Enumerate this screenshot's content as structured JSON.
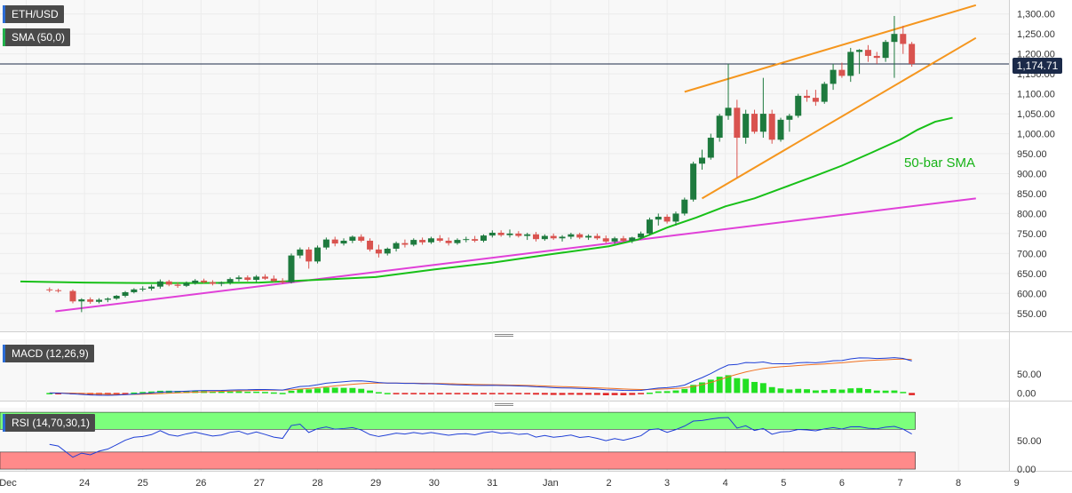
{
  "chart_data": {
    "type": "candlestick",
    "x_tick_labels": [
      "Dec",
      "24",
      "25",
      "26",
      "27",
      "28",
      "29",
      "30",
      "31",
      "Jan",
      "2",
      "3",
      "4",
      "5",
      "6",
      "7",
      "8",
      "9"
    ],
    "price_panel": {
      "symbol_label": "ETH/USD",
      "indicator_label": "SMA (50,0)",
      "y_tick_labels": [
        "1,300.00",
        "1,250.00",
        "1,200.00",
        "1,150.00",
        "1,100.00",
        "1,050.00",
        "1,000.00",
        "950.00",
        "900.00",
        "850.00",
        "800.00",
        "750.00",
        "700.00",
        "650.00",
        "600.00",
        "550.00"
      ],
      "ylim": [
        505,
        1335
      ],
      "last_price": 1174.71,
      "last_price_label": "1,174.71",
      "annotation": "50-bar SMA",
      "candles": [
        [
          23.4,
          610,
          615,
          603,
          608
        ],
        [
          23.55,
          608,
          612,
          602,
          606
        ],
        [
          23.8,
          606,
          610,
          575,
          580
        ],
        [
          23.95,
          580,
          588,
          553,
          585
        ],
        [
          24.1,
          585,
          590,
          574,
          579
        ],
        [
          24.25,
          579,
          588,
          575,
          584
        ],
        [
          24.4,
          584,
          590,
          578,
          587
        ],
        [
          24.55,
          587,
          596,
          584,
          594
        ],
        [
          24.7,
          594,
          606,
          590,
          603
        ],
        [
          24.85,
          603,
          613,
          600,
          610
        ],
        [
          25.0,
          610,
          618,
          605,
          612
        ],
        [
          25.15,
          612,
          622,
          607,
          617
        ],
        [
          25.3,
          617,
          635,
          612,
          630
        ],
        [
          25.45,
          630,
          634,
          618,
          622
        ],
        [
          25.6,
          622,
          628,
          614,
          619
        ],
        [
          25.75,
          619,
          630,
          616,
          626
        ],
        [
          25.9,
          626,
          636,
          622,
          632
        ],
        [
          26.05,
          632,
          637,
          625,
          628
        ],
        [
          26.2,
          628,
          633,
          620,
          624
        ],
        [
          26.35,
          624,
          630,
          618,
          627
        ],
        [
          26.5,
          627,
          640,
          622,
          636
        ],
        [
          26.65,
          636,
          645,
          630,
          640
        ],
        [
          26.8,
          640,
          645,
          630,
          634
        ],
        [
          26.95,
          634,
          646,
          628,
          642
        ],
        [
          27.1,
          642,
          648,
          634,
          637
        ],
        [
          27.25,
          637,
          645,
          628,
          631
        ],
        [
          27.4,
          631,
          638,
          624,
          628
        ],
        [
          27.55,
          628,
          700,
          625,
          695
        ],
        [
          27.7,
          695,
          715,
          688,
          710
        ],
        [
          27.85,
          710,
          716,
          662,
          680
        ],
        [
          28.0,
          680,
          720,
          675,
          715
        ],
        [
          28.15,
          715,
          740,
          710,
          735
        ],
        [
          28.3,
          735,
          742,
          718,
          725
        ],
        [
          28.45,
          725,
          738,
          720,
          732
        ],
        [
          28.6,
          732,
          745,
          726,
          742
        ],
        [
          28.75,
          742,
          748,
          728,
          732
        ],
        [
          28.9,
          732,
          738,
          705,
          710
        ],
        [
          29.05,
          710,
          722,
          690,
          700
        ],
        [
          29.2,
          700,
          715,
          695,
          712
        ],
        [
          29.35,
          712,
          730,
          705,
          726
        ],
        [
          29.5,
          726,
          735,
          715,
          722
        ],
        [
          29.65,
          722,
          738,
          718,
          734
        ],
        [
          29.8,
          734,
          740,
          722,
          728
        ],
        [
          29.95,
          728,
          742,
          724,
          738
        ],
        [
          30.1,
          738,
          746,
          728,
          732
        ],
        [
          30.25,
          732,
          740,
          720,
          726
        ],
        [
          30.4,
          726,
          738,
          722,
          734
        ],
        [
          30.55,
          734,
          742,
          728,
          736
        ],
        [
          30.7,
          736,
          744,
          728,
          732
        ],
        [
          30.85,
          732,
          748,
          728,
          745
        ],
        [
          31.0,
          745,
          758,
          740,
          752
        ],
        [
          31.15,
          752,
          758,
          742,
          746
        ],
        [
          31.3,
          746,
          760,
          740,
          750
        ],
        [
          31.45,
          750,
          756,
          740,
          744
        ],
        [
          31.6,
          744,
          752,
          734,
          748
        ],
        [
          31.75,
          748,
          754,
          730,
          736
        ],
        [
          31.9,
          736,
          748,
          732,
          744
        ],
        [
          32.05,
          744,
          750,
          734,
          738
        ],
        [
          32.2,
          738,
          746,
          730,
          742
        ],
        [
          32.35,
          742,
          752,
          736,
          748
        ],
        [
          32.5,
          748,
          752,
          736,
          740
        ],
        [
          32.65,
          740,
          748,
          734,
          744
        ],
        [
          32.8,
          744,
          750,
          734,
          738
        ],
        [
          32.95,
          738,
          745,
          726,
          730
        ],
        [
          33.1,
          730,
          742,
          724,
          738
        ],
        [
          33.25,
          738,
          744,
          728,
          732
        ],
        [
          33.4,
          732,
          742,
          726,
          740
        ],
        [
          33.55,
          740,
          755,
          735,
          750
        ],
        [
          33.7,
          750,
          790,
          745,
          785
        ],
        [
          33.85,
          785,
          800,
          770,
          792
        ],
        [
          34.0,
          792,
          798,
          775,
          780
        ],
        [
          34.15,
          780,
          805,
          770,
          800
        ],
        [
          34.3,
          800,
          840,
          795,
          835
        ],
        [
          34.45,
          835,
          930,
          830,
          925
        ],
        [
          34.6,
          925,
          960,
          910,
          940
        ],
        [
          34.75,
          940,
          1000,
          935,
          990
        ],
        [
          34.9,
          990,
          1050,
          980,
          1045
        ],
        [
          35.05,
          1045,
          1175,
          1035,
          1065
        ],
        [
          35.2,
          1065,
          1085,
          890,
          990
        ],
        [
          35.35,
          990,
          1060,
          975,
          1050
        ],
        [
          35.5,
          1050,
          1060,
          1000,
          1005
        ],
        [
          35.65,
          1005,
          1140,
          990,
          1050
        ],
        [
          35.8,
          1050,
          1060,
          975,
          985
        ],
        [
          35.95,
          985,
          1040,
          980,
          1035
        ],
        [
          36.1,
          1035,
          1050,
          1005,
          1045
        ],
        [
          36.25,
          1045,
          1100,
          1040,
          1095
        ],
        [
          36.4,
          1095,
          1110,
          1080,
          1090
        ],
        [
          36.55,
          1090,
          1110,
          1070,
          1080
        ],
        [
          36.7,
          1080,
          1130,
          1075,
          1125
        ],
        [
          36.85,
          1125,
          1175,
          1110,
          1160
        ],
        [
          37.0,
          1160,
          1178,
          1140,
          1145
        ],
        [
          37.15,
          1145,
          1215,
          1130,
          1205
        ],
        [
          37.3,
          1205,
          1212,
          1150,
          1210
        ],
        [
          37.45,
          1210,
          1222,
          1180,
          1195
        ],
        [
          37.6,
          1195,
          1205,
          1175,
          1190
        ],
        [
          37.75,
          1190,
          1235,
          1180,
          1230
        ],
        [
          37.9,
          1230,
          1295,
          1140,
          1250
        ],
        [
          38.05,
          1250,
          1270,
          1200,
          1225
        ],
        [
          38.2,
          1225,
          1230,
          1168,
          1175
        ]
      ],
      "sma50": [
        [
          22.9,
          630
        ],
        [
          24.0,
          627
        ],
        [
          25.0,
          626
        ],
        [
          26.0,
          626
        ],
        [
          27.0,
          627
        ],
        [
          28.0,
          634
        ],
        [
          29.0,
          641
        ],
        [
          30.0,
          660
        ],
        [
          31.0,
          677
        ],
        [
          32.0,
          698
        ],
        [
          33.0,
          718
        ],
        [
          33.5,
          735
        ],
        [
          34.0,
          765
        ],
        [
          34.5,
          790
        ],
        [
          35.0,
          818
        ],
        [
          35.5,
          838
        ],
        [
          36.0,
          865
        ],
        [
          36.5,
          892
        ],
        [
          37.0,
          920
        ],
        [
          37.5,
          952
        ],
        [
          38.0,
          985
        ],
        [
          38.3,
          1010
        ],
        [
          38.6,
          1030
        ],
        [
          38.9,
          1040
        ]
      ],
      "trendlines": [
        {
          "color": "#e040d8",
          "points": [
            [
              23.5,
              555
            ],
            [
              39.3,
              838
            ]
          ]
        },
        {
          "color": "#f5961e",
          "points": [
            [
              34.3,
              1105
            ],
            [
              39.3,
              1322
            ]
          ]
        },
        {
          "color": "#f5961e",
          "points": [
            [
              34.6,
              838
            ],
            [
              39.3,
              1240
            ]
          ]
        }
      ]
    },
    "macd_panel": {
      "label": "MACD (12,26,9)",
      "y_tick_labels": [
        "50.00",
        "0.00"
      ],
      "ylim": [
        -20,
        140
      ]
    },
    "rsi_panel": {
      "label": "RSI (14,70,30,1)",
      "y_tick_labels": [
        "50.00",
        "0.00"
      ],
      "ylim": [
        -3,
        108
      ]
    },
    "colors": {
      "bull": "#1e7a3e",
      "bear": "#d9534f",
      "sma": "#18c018",
      "trend_up": "#e040d8",
      "channel": "#f5961e",
      "macd": "#1f3fd6",
      "signal": "#f07020",
      "rsi_band": "#7cff7c",
      "rsi_oversold": "#ff8a8a"
    }
  }
}
